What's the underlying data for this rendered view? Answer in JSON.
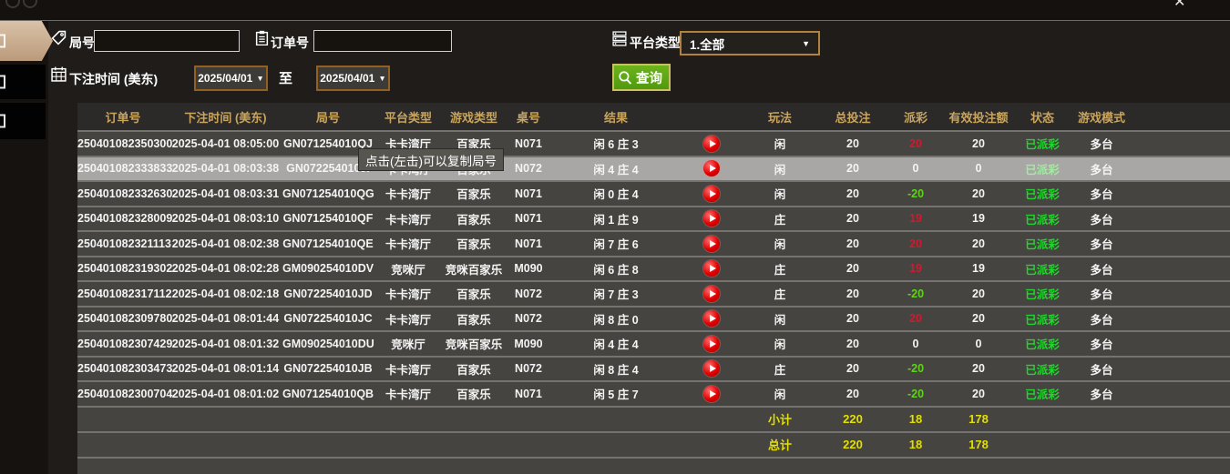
{
  "window": {
    "close_glyph": "✕"
  },
  "filters": {
    "round_label": "局号",
    "round_value": "",
    "order_label": "订单号",
    "order_value": "",
    "platform_label": "平台类型",
    "platform_selected": "1.全部",
    "platform_caret": "▼",
    "time_label": "下注时间 (美东)",
    "date_from": "2025/04/01",
    "date_to": "2025/04/01",
    "date_caret": "▼",
    "to_label": "至",
    "query_label": "查询"
  },
  "tooltip": {
    "text": "点击(左击)可以复制局号"
  },
  "table": {
    "headers": [
      "订单号",
      "下注时间 (美东)",
      "局号",
      "平台类型",
      "游戏类型",
      "桌号",
      "结果",
      "",
      "玩法",
      "总投注",
      "派彩",
      "有效投注额",
      "状态",
      "游戏模式",
      ""
    ],
    "rows": [
      {
        "order": "250401082350300",
        "time": "2025-04-01 08:05:00",
        "round": "GN071254010QJ",
        "platform": "卡卡湾厅",
        "game": "百家乐",
        "table": "N071",
        "result": "闲 6 庄 3",
        "play": "闲",
        "total_bet": "20",
        "payout": "20",
        "payout_color": "pos",
        "valid_bet": "20",
        "status": "已派彩",
        "mode": "多台",
        "highlight": false
      },
      {
        "order": "250401082333833",
        "time": "2025-04-01 08:03:38",
        "round": "GN072254010JI",
        "platform": "卡卡湾厅",
        "game": "百家乐",
        "table": "N072",
        "result": "闲 4 庄 4",
        "play": "闲",
        "total_bet": "20",
        "payout": "0",
        "payout_color": "zero",
        "valid_bet": "0",
        "status": "已派彩",
        "mode": "多台",
        "highlight": true
      },
      {
        "order": "250401082332630",
        "time": "2025-04-01 08:03:31",
        "round": "GN071254010QG",
        "platform": "卡卡湾厅",
        "game": "百家乐",
        "table": "N071",
        "result": "闲 0 庄 4",
        "play": "闲",
        "total_bet": "20",
        "payout": "-20",
        "payout_color": "neg",
        "valid_bet": "20",
        "status": "已派彩",
        "mode": "多台",
        "highlight": false
      },
      {
        "order": "250401082328009",
        "time": "2025-04-01 08:03:10",
        "round": "GN071254010QF",
        "platform": "卡卡湾厅",
        "game": "百家乐",
        "table": "N071",
        "result": "闲 1 庄 9",
        "play": "庄",
        "total_bet": "20",
        "payout": "19",
        "payout_color": "pos",
        "valid_bet": "19",
        "status": "已派彩",
        "mode": "多台",
        "highlight": false
      },
      {
        "order": "250401082321113",
        "time": "2025-04-01 08:02:38",
        "round": "GN071254010QE",
        "platform": "卡卡湾厅",
        "game": "百家乐",
        "table": "N071",
        "result": "闲 7 庄 6",
        "play": "闲",
        "total_bet": "20",
        "payout": "20",
        "payout_color": "pos",
        "valid_bet": "20",
        "status": "已派彩",
        "mode": "多台",
        "highlight": false
      },
      {
        "order": "250401082319302",
        "time": "2025-04-01 08:02:28",
        "round": "GM090254010DV",
        "platform": "竞咪厅",
        "game": "竞咪百家乐",
        "table": "M090",
        "result": "闲 6 庄 8",
        "play": "庄",
        "total_bet": "20",
        "payout": "19",
        "payout_color": "pos",
        "valid_bet": "19",
        "status": "已派彩",
        "mode": "多台",
        "highlight": false
      },
      {
        "order": "250401082317112",
        "time": "2025-04-01 08:02:18",
        "round": "GN072254010JD",
        "platform": "卡卡湾厅",
        "game": "百家乐",
        "table": "N072",
        "result": "闲 7 庄 3",
        "play": "庄",
        "total_bet": "20",
        "payout": "-20",
        "payout_color": "neg",
        "valid_bet": "20",
        "status": "已派彩",
        "mode": "多台",
        "highlight": false
      },
      {
        "order": "250401082309780",
        "time": "2025-04-01 08:01:44",
        "round": "GN072254010JC",
        "platform": "卡卡湾厅",
        "game": "百家乐",
        "table": "N072",
        "result": "闲 8 庄 0",
        "play": "闲",
        "total_bet": "20",
        "payout": "20",
        "payout_color": "pos",
        "valid_bet": "20",
        "status": "已派彩",
        "mode": "多台",
        "highlight": false
      },
      {
        "order": "250401082307429",
        "time": "2025-04-01 08:01:32",
        "round": "GM090254010DU",
        "platform": "竞咪厅",
        "game": "竞咪百家乐",
        "table": "M090",
        "result": "闲 4 庄 4",
        "play": "闲",
        "total_bet": "20",
        "payout": "0",
        "payout_color": "zero",
        "valid_bet": "0",
        "status": "已派彩",
        "mode": "多台",
        "highlight": false
      },
      {
        "order": "250401082303473",
        "time": "2025-04-01 08:01:14",
        "round": "GN072254010JB",
        "platform": "卡卡湾厅",
        "game": "百家乐",
        "table": "N072",
        "result": "闲 8 庄 4",
        "play": "庄",
        "total_bet": "20",
        "payout": "-20",
        "payout_color": "neg",
        "valid_bet": "20",
        "status": "已派彩",
        "mode": "多台",
        "highlight": false
      },
      {
        "order": "250401082300704",
        "time": "2025-04-01 08:01:02",
        "round": "GN071254010QB",
        "platform": "卡卡湾厅",
        "game": "百家乐",
        "table": "N071",
        "result": "闲 5 庄 7",
        "play": "闲",
        "total_bet": "20",
        "payout": "-20",
        "payout_color": "neg",
        "valid_bet": "20",
        "status": "已派彩",
        "mode": "多台",
        "highlight": false
      }
    ],
    "subtotal": {
      "label": "小计",
      "total_bet": "220",
      "payout": "18",
      "valid_bet": "178"
    },
    "grand_total": {
      "label": "总计",
      "total_bet": "220",
      "payout": "18",
      "valid_bet": "178"
    }
  },
  "colors": {
    "accent_green_button": "#58a414",
    "header_gold": "#c9a45c",
    "row_bg": "#454440",
    "row_highlight": "#a8a7a5",
    "payout_positive_red": "#cf1a30",
    "payout_negative_green": "#5cd515",
    "status_paid_green": "#22d52e",
    "totals_yellow": "#e3df00",
    "date_border_brown": "#935f22",
    "sidebar_selected_tan": "#c9ae90"
  }
}
